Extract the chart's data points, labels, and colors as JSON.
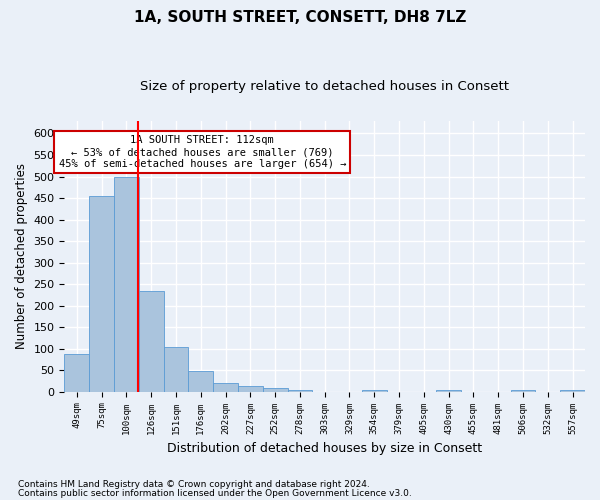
{
  "title1": "1A, SOUTH STREET, CONSETT, DH8 7LZ",
  "title2": "Size of property relative to detached houses in Consett",
  "xlabel": "Distribution of detached houses by size in Consett",
  "ylabel": "Number of detached properties",
  "footer1": "Contains HM Land Registry data © Crown copyright and database right 2024.",
  "footer2": "Contains public sector information licensed under the Open Government Licence v3.0.",
  "bins": [
    "49sqm",
    "75sqm",
    "100sqm",
    "126sqm",
    "151sqm",
    "176sqm",
    "202sqm",
    "227sqm",
    "252sqm",
    "278sqm",
    "303sqm",
    "329sqm",
    "354sqm",
    "379sqm",
    "405sqm",
    "430sqm",
    "455sqm",
    "481sqm",
    "506sqm",
    "532sqm",
    "557sqm"
  ],
  "values": [
    88,
    455,
    500,
    233,
    103,
    48,
    20,
    13,
    8,
    5,
    0,
    0,
    5,
    0,
    0,
    5,
    0,
    0,
    5,
    0,
    5
  ],
  "bar_color": "#aac4dd",
  "bar_edge_color": "#5b9bd5",
  "red_line_x": 2.48,
  "annotation_text": "1A SOUTH STREET: 112sqm\n← 53% of detached houses are smaller (769)\n45% of semi-detached houses are larger (654) →",
  "annotation_box_color": "#ffffff",
  "annotation_box_edge": "#cc0000",
  "ylim": [
    0,
    630
  ],
  "yticks": [
    0,
    50,
    100,
    150,
    200,
    250,
    300,
    350,
    400,
    450,
    500,
    550,
    600
  ],
  "background_color": "#eaf0f8",
  "grid_color": "#ffffff",
  "title1_fontsize": 11,
  "title2_fontsize": 9.5,
  "xlabel_fontsize": 9,
  "ylabel_fontsize": 8.5,
  "footer_fontsize": 6.5
}
